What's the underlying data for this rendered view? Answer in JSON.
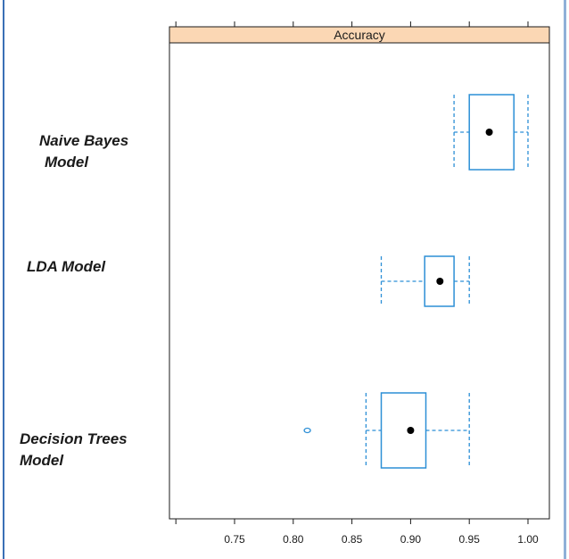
{
  "chart_data": {
    "type": "boxplot",
    "strip_title": "Accuracy",
    "strip_color": "#fbd7b4",
    "box_color": "#2c8fd6",
    "median_color": "#000000",
    "xlim": [
      0.7,
      1.02
    ],
    "x_ticks": [
      0.75,
      0.8,
      0.85,
      0.9,
      0.95,
      1.0
    ],
    "x_tick_labels": [
      "0.75",
      "0.80",
      "0.85",
      "0.90",
      "0.95",
      "1.00"
    ],
    "categories": [
      {
        "label_lines": [
          "Naive Bayes",
          "Model"
        ],
        "whisker_low": 0.937,
        "q1": 0.95,
        "median": 0.967,
        "q3": 0.988,
        "whisker_high": 1.0,
        "outliers": []
      },
      {
        "label_lines": [
          "LDA Model"
        ],
        "whisker_low": 0.875,
        "q1": 0.912,
        "median": 0.925,
        "q3": 0.937,
        "whisker_high": 0.95,
        "outliers": []
      },
      {
        "label_lines": [
          "Decision Trees",
          "Model"
        ],
        "whisker_low": 0.862,
        "q1": 0.875,
        "median": 0.9,
        "q3": 0.913,
        "whisker_high": 0.95,
        "outliers": [
          0.812
        ]
      }
    ]
  }
}
